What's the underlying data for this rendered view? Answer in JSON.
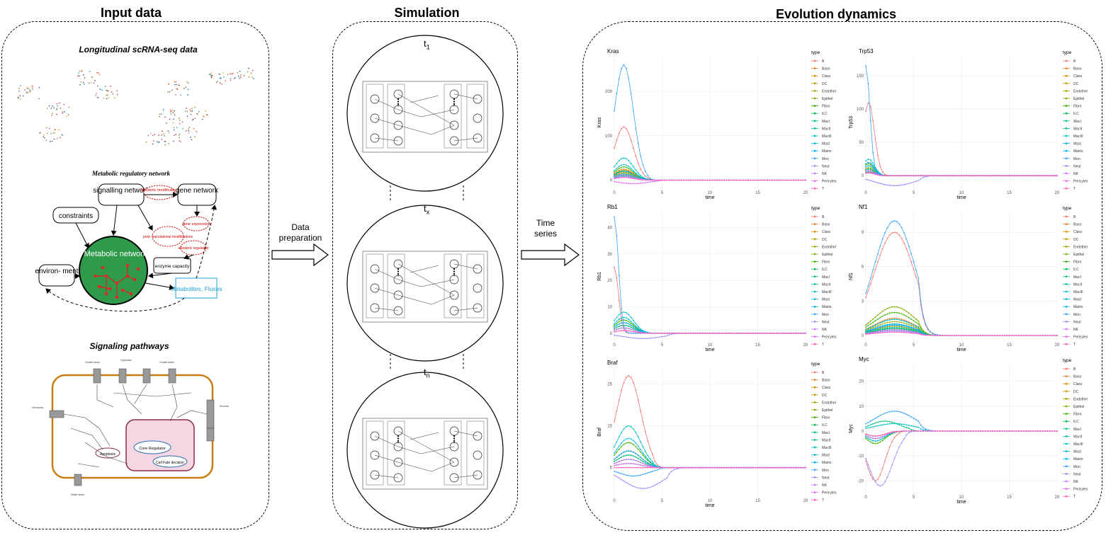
{
  "sections": {
    "input": {
      "title": "Input data",
      "scrna_label": "Longitudinal scRNA-seq data",
      "metabolic_label": "Metabolic regulatory network",
      "signaling_label": "Signaling pathways",
      "network": {
        "signalling": "signalling network",
        "gene": "gene network",
        "constraints": "constraints",
        "metabolic": "Metabolic network",
        "environment": "environ- ment",
        "enzyme": "enzyme capacity",
        "metabolites": "Metabolites, Fluxes",
        "allosteric": "allosteric modification",
        "gene_expression": "gene expression",
        "post_translational": "post- translational modifications",
        "allosteric_regulation": "allosteric regulation"
      },
      "cell": {
        "regulator": "Core Regulator",
        "outcome": "Cell Fate decision",
        "apoptosis": "Apoptosis"
      }
    },
    "simulation": {
      "title": "Simulation",
      "t1": "t",
      "t1_sub": "1",
      "tx": "t",
      "tx_sub": "x",
      "tn": "t",
      "tn_sub": "n"
    },
    "evolution": {
      "title": "Evolution dynamics"
    }
  },
  "arrows": {
    "data_prep": "Data preparation",
    "time_series": "Time series"
  },
  "chart_data": [
    {
      "type": "line",
      "title": "Kras",
      "xlabel": "time",
      "ylabel": "Kras",
      "xlim": [
        0,
        20
      ],
      "xticks": [
        0,
        5,
        10,
        15,
        20
      ],
      "yticks": [
        0,
        100,
        200
      ],
      "ylim": [
        -20,
        280
      ],
      "legend_title": "type",
      "series": [
        {
          "name": "B",
          "color": "#F8766D",
          "peak": 120,
          "peak_t": 1.0
        },
        {
          "name": "Baso",
          "color": "#EA8331",
          "peak": 25,
          "peak_t": 1.0
        },
        {
          "name": "Clara",
          "color": "#D89000",
          "peak": 20,
          "peak_t": 1.0
        },
        {
          "name": "DC",
          "color": "#C09B00",
          "peak": 15,
          "peak_t": 1.0
        },
        {
          "name": "Endothel",
          "color": "#A3A500",
          "peak": 18,
          "peak_t": 1.0
        },
        {
          "name": "Epithel",
          "color": "#7CAE00",
          "peak": 22,
          "peak_t": 1.0
        },
        {
          "name": "Fibro",
          "color": "#39B600",
          "peak": 30,
          "peak_t": 1.0
        },
        {
          "name": "ILC",
          "color": "#00BB4E",
          "peak": 12,
          "peak_t": 1.0
        },
        {
          "name": "MacI",
          "color": "#00BF7D",
          "peak": 10,
          "peak_t": 1.0
        },
        {
          "name": "MacII",
          "color": "#00C1A3",
          "peak": 14,
          "peak_t": 1.0
        },
        {
          "name": "MacIII",
          "color": "#00BFC4",
          "peak": 50,
          "peak_t": 1.0
        },
        {
          "name": "Mast",
          "color": "#00BAE0",
          "peak": 35,
          "peak_t": 1.0
        },
        {
          "name": "Matrix",
          "color": "#00B0F6",
          "peak": 20,
          "peak_t": 1.0
        },
        {
          "name": "Mon",
          "color": "#35A2FF",
          "peak": 260,
          "peak_t": 1.0
        },
        {
          "name": "Neut",
          "color": "#9590FF",
          "peak": 8,
          "peak_t": 1.0
        },
        {
          "name": "NK",
          "color": "#C77CFF",
          "peak": 12,
          "peak_t": 1.0
        },
        {
          "name": "Pericytes",
          "color": "#E76BF3",
          "peak": -8,
          "peak_t": 2.0
        },
        {
          "name": "T",
          "color": "#FF62BC",
          "peak": 6,
          "peak_t": 1.0
        }
      ]
    },
    {
      "type": "line",
      "title": "Trp53",
      "xlabel": "time",
      "ylabel": "Trp53",
      "xlim": [
        0,
        20
      ],
      "xticks": [
        0,
        5,
        10,
        15,
        20
      ],
      "yticks": [
        0,
        50,
        100,
        150
      ],
      "ylim": [
        -20,
        180
      ],
      "legend_title": "type",
      "series": [
        {
          "name": "B",
          "color": "#F8766D",
          "peak": 110,
          "peak_t": 0.3
        },
        {
          "name": "Baso",
          "color": "#EA8331",
          "peak": 20,
          "peak_t": 0.3
        },
        {
          "name": "Clara",
          "color": "#D89000",
          "peak": 15,
          "peak_t": 0.3
        },
        {
          "name": "DC",
          "color": "#C09B00",
          "peak": 10,
          "peak_t": 0.3
        },
        {
          "name": "Endothel",
          "color": "#A3A500",
          "peak": 8,
          "peak_t": 0.3
        },
        {
          "name": "Epithel",
          "color": "#7CAE00",
          "peak": 12,
          "peak_t": 0.3
        },
        {
          "name": "Fibro",
          "color": "#39B600",
          "peak": 18,
          "peak_t": 0.3
        },
        {
          "name": "ILC",
          "color": "#00BB4E",
          "peak": 6,
          "peak_t": 0.3
        },
        {
          "name": "MacI",
          "color": "#00BF7D",
          "peak": 5,
          "peak_t": 0.3
        },
        {
          "name": "MacII",
          "color": "#00C1A3",
          "peak": 10,
          "peak_t": 0.3
        },
        {
          "name": "MacIII",
          "color": "#00BFC4",
          "peak": 25,
          "peak_t": 0.3
        },
        {
          "name": "Mast",
          "color": "#00BAE0",
          "peak": 15,
          "peak_t": 0.3
        },
        {
          "name": "Matrix",
          "color": "#00B0F6",
          "peak": 20,
          "peak_t": 0.3
        },
        {
          "name": "Mon",
          "color": "#35A2FF",
          "peak": 165,
          "peak_t": 0.0
        },
        {
          "name": "Neut",
          "color": "#9590FF",
          "peak": -15,
          "peak_t": 3.0
        },
        {
          "name": "NK",
          "color": "#C77CFF",
          "peak": 8,
          "peak_t": 0.3
        },
        {
          "name": "Pericytes",
          "color": "#E76BF3",
          "peak": 5,
          "peak_t": 0.3
        },
        {
          "name": "T",
          "color": "#FF62BC",
          "peak": 4,
          "peak_t": 0.3
        }
      ]
    },
    {
      "type": "line",
      "title": "Rb1",
      "xlabel": "time",
      "ylabel": "Rb1",
      "xlim": [
        0,
        20
      ],
      "xticks": [
        0,
        5,
        10,
        15,
        20
      ],
      "yticks": [
        0,
        10,
        20,
        30,
        40
      ],
      "ylim": [
        -3,
        46
      ],
      "legend_title": "type",
      "series": [
        {
          "name": "B",
          "color": "#F8766D",
          "peak": 25,
          "peak_t": 0.0
        },
        {
          "name": "Baso",
          "color": "#EA8331",
          "peak": 5,
          "peak_t": 1.0
        },
        {
          "name": "Clara",
          "color": "#D89000",
          "peak": 3,
          "peak_t": 1.0
        },
        {
          "name": "DC",
          "color": "#C09B00",
          "peak": 2,
          "peak_t": 1.0
        },
        {
          "name": "Endothel",
          "color": "#A3A500",
          "peak": 3,
          "peak_t": 1.0
        },
        {
          "name": "Epithel",
          "color": "#7CAE00",
          "peak": 4,
          "peak_t": 1.0
        },
        {
          "name": "Fibro",
          "color": "#39B600",
          "peak": 5,
          "peak_t": 1.0
        },
        {
          "name": "ILC",
          "color": "#00BB4E",
          "peak": 2,
          "peak_t": 1.0
        },
        {
          "name": "MacI",
          "color": "#00BF7D",
          "peak": 2,
          "peak_t": 1.0
        },
        {
          "name": "MacII",
          "color": "#00C1A3",
          "peak": 3,
          "peak_t": 1.0
        },
        {
          "name": "MacIII",
          "color": "#00BFC4",
          "peak": 8,
          "peak_t": 1.0
        },
        {
          "name": "Mast",
          "color": "#00BAE0",
          "peak": 6,
          "peak_t": 1.0
        },
        {
          "name": "Matrix",
          "color": "#00B0F6",
          "peak": 4,
          "peak_t": 1.0
        },
        {
          "name": "Mon",
          "color": "#35A2FF",
          "peak": 44,
          "peak_t": 0.0
        },
        {
          "name": "Neut",
          "color": "#9590FF",
          "peak": -2,
          "peak_t": 3.0
        },
        {
          "name": "NK",
          "color": "#C77CFF",
          "peak": 2,
          "peak_t": 1.0
        },
        {
          "name": "Pericytes",
          "color": "#E76BF3",
          "peak": 1,
          "peak_t": 1.0
        },
        {
          "name": "T",
          "color": "#FF62BC",
          "peak": 1,
          "peak_t": 1.0
        }
      ]
    },
    {
      "type": "line",
      "title": "Nf1",
      "xlabel": "time",
      "ylabel": "Nf1",
      "xlim": [
        0,
        20
      ],
      "xticks": [
        0,
        5,
        10,
        15,
        20
      ],
      "yticks": [
        0,
        3,
        6,
        9
      ],
      "ylim": [
        -0.5,
        10.8
      ],
      "legend_title": "type",
      "series": [
        {
          "name": "B",
          "color": "#F8766D",
          "peak": 9.0,
          "peak_t": 3.0
        },
        {
          "name": "Baso",
          "color": "#EA8331",
          "peak": 1.5,
          "peak_t": 3.0
        },
        {
          "name": "Clara",
          "color": "#D89000",
          "peak": 1.0,
          "peak_t": 3.0
        },
        {
          "name": "DC",
          "color": "#C09B00",
          "peak": 0.8,
          "peak_t": 3.0
        },
        {
          "name": "Endothel",
          "color": "#A3A500",
          "peak": 1.2,
          "peak_t": 3.0
        },
        {
          "name": "Epithel",
          "color": "#7CAE00",
          "peak": 2.5,
          "peak_t": 3.0
        },
        {
          "name": "Fibro",
          "color": "#39B600",
          "peak": 2.0,
          "peak_t": 3.0
        },
        {
          "name": "ILC",
          "color": "#00BB4E",
          "peak": 0.6,
          "peak_t": 3.0
        },
        {
          "name": "MacI",
          "color": "#00BF7D",
          "peak": 0.5,
          "peak_t": 3.0
        },
        {
          "name": "MacII",
          "color": "#00C1A3",
          "peak": 0.7,
          "peak_t": 3.0
        },
        {
          "name": "MacIII",
          "color": "#00BFC4",
          "peak": 1.4,
          "peak_t": 3.0
        },
        {
          "name": "Mast",
          "color": "#00BAE0",
          "peak": 0.9,
          "peak_t": 3.0
        },
        {
          "name": "Matrix",
          "color": "#00B0F6",
          "peak": 1.0,
          "peak_t": 3.0
        },
        {
          "name": "Mon",
          "color": "#35A2FF",
          "peak": 10.0,
          "peak_t": 3.0
        },
        {
          "name": "Neut",
          "color": "#9590FF",
          "peak": 0.4,
          "peak_t": 3.0
        },
        {
          "name": "NK",
          "color": "#C77CFF",
          "peak": 0.5,
          "peak_t": 3.0
        },
        {
          "name": "Pericytes",
          "color": "#E76BF3",
          "peak": 0.3,
          "peak_t": 3.0
        },
        {
          "name": "T",
          "color": "#FF62BC",
          "peak": 0.3,
          "peak_t": 3.0
        }
      ]
    },
    {
      "type": "line",
      "title": "Braf",
      "xlabel": "time",
      "ylabel": "Braf",
      "xlim": [
        0,
        20
      ],
      "xticks": [
        0,
        5,
        10,
        15,
        20
      ],
      "yticks": [
        5,
        15,
        25
      ],
      "ylim": [
        -2,
        29
      ],
      "legend_title": "type",
      "series": [
        {
          "name": "B",
          "color": "#F8766D",
          "peak": 27,
          "peak_t": 1.5
        },
        {
          "name": "Baso",
          "color": "#EA8331",
          "peak": 9,
          "peak_t": 1.5
        },
        {
          "name": "Clara",
          "color": "#D89000",
          "peak": 8,
          "peak_t": 1.5
        },
        {
          "name": "DC",
          "color": "#C09B00",
          "peak": 7,
          "peak_t": 1.5
        },
        {
          "name": "Endothel",
          "color": "#A3A500",
          "peak": 8,
          "peak_t": 1.5
        },
        {
          "name": "Epithel",
          "color": "#7CAE00",
          "peak": 9,
          "peak_t": 1.5
        },
        {
          "name": "Fibro",
          "color": "#39B600",
          "peak": 11,
          "peak_t": 1.5
        },
        {
          "name": "ILC",
          "color": "#00BB4E",
          "peak": 7,
          "peak_t": 1.5
        },
        {
          "name": "MacI",
          "color": "#00BF7D",
          "peak": 6,
          "peak_t": 1.5
        },
        {
          "name": "MacII",
          "color": "#00C1A3",
          "peak": 8,
          "peak_t": 1.5
        },
        {
          "name": "MacIII",
          "color": "#00BFC4",
          "peak": 15,
          "peak_t": 1.5
        },
        {
          "name": "Mast",
          "color": "#00BAE0",
          "peak": 12,
          "peak_t": 1.5
        },
        {
          "name": "Matrix",
          "color": "#00B0F6",
          "peak": 9,
          "peak_t": 1.5
        },
        {
          "name": "Mon",
          "color": "#35A2FF",
          "peak": 3,
          "peak_t": 2.0
        },
        {
          "name": "Neut",
          "color": "#9590FF",
          "peak": 0,
          "peak_t": 3.0
        },
        {
          "name": "NK",
          "color": "#C77CFF",
          "peak": 7,
          "peak_t": 1.5
        },
        {
          "name": "Pericytes",
          "color": "#E76BF3",
          "peak": 6,
          "peak_t": 1.5
        },
        {
          "name": "T",
          "color": "#FF62BC",
          "peak": 5,
          "peak_t": 1.5
        }
      ]
    },
    {
      "type": "line",
      "title": "Myc",
      "xlabel": "time",
      "ylabel": "Myc",
      "xlim": [
        0,
        20
      ],
      "xticks": [
        0,
        5,
        10,
        15,
        20
      ],
      "yticks": [
        -20,
        -10,
        0,
        10,
        20
      ],
      "ylim": [
        -25,
        27
      ],
      "legend_title": "type",
      "series": [
        {
          "name": "B",
          "color": "#F8766D",
          "peak": -20,
          "peak_t": 1.0
        },
        {
          "name": "Baso",
          "color": "#EA8331",
          "peak": -3,
          "peak_t": 1.0
        },
        {
          "name": "Clara",
          "color": "#D89000",
          "peak": -2,
          "peak_t": 1.0
        },
        {
          "name": "DC",
          "color": "#C09B00",
          "peak": -2,
          "peak_t": 1.0
        },
        {
          "name": "Endothel",
          "color": "#A3A500",
          "peak": -3,
          "peak_t": 1.0
        },
        {
          "name": "Epithel",
          "color": "#7CAE00",
          "peak": -4,
          "peak_t": 1.0
        },
        {
          "name": "Fibro",
          "color": "#39B600",
          "peak": -5,
          "peak_t": 1.0
        },
        {
          "name": "ILC",
          "color": "#00BB4E",
          "peak": -2,
          "peak_t": 1.0
        },
        {
          "name": "MacI",
          "color": "#00BF7D",
          "peak": 4,
          "peak_t": 2.0
        },
        {
          "name": "MacII",
          "color": "#00C1A3",
          "peak": -3,
          "peak_t": 1.0
        },
        {
          "name": "MacIII",
          "color": "#00BFC4",
          "peak": 3,
          "peak_t": 3.0
        },
        {
          "name": "Mast",
          "color": "#00BAE0",
          "peak": -4,
          "peak_t": 1.0
        },
        {
          "name": "Matrix",
          "color": "#00B0F6",
          "peak": -3,
          "peak_t": 1.0
        },
        {
          "name": "Mon",
          "color": "#35A2FF",
          "peak": 8,
          "peak_t": 3.0
        },
        {
          "name": "Neut",
          "color": "#9590FF",
          "peak": -22,
          "peak_t": 1.5
        },
        {
          "name": "NK",
          "color": "#C77CFF",
          "peak": -3,
          "peak_t": 1.0
        },
        {
          "name": "Pericytes",
          "color": "#E76BF3",
          "peak": -2,
          "peak_t": 1.0
        },
        {
          "name": "T",
          "color": "#FF62BC",
          "peak": -2,
          "peak_t": 1.0
        }
      ]
    }
  ]
}
